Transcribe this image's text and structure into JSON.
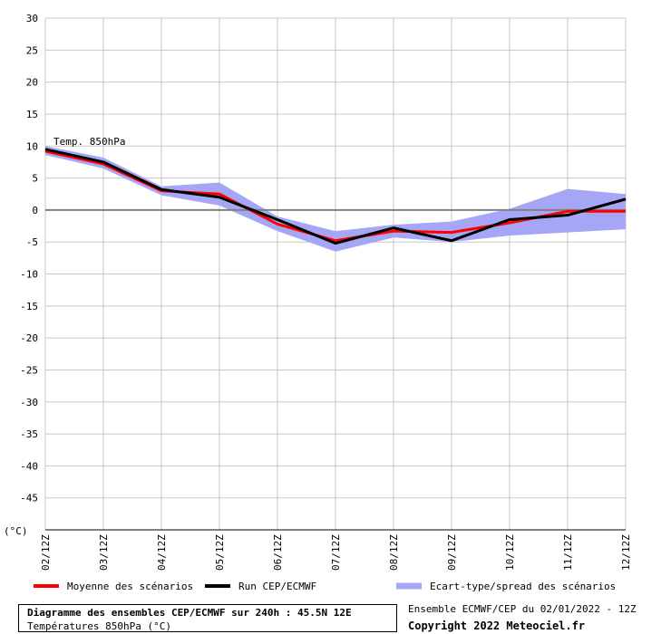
{
  "chart_data": {
    "type": "line",
    "series_label": "Temp. 850hPa",
    "unit_label": "(°C)",
    "categories": [
      "02/12Z",
      "03/12Z",
      "04/12Z",
      "05/12Z",
      "06/12Z",
      "07/12Z",
      "08/12Z",
      "09/12Z",
      "10/12Z",
      "11/12Z",
      "12/12Z"
    ],
    "yticks": [
      30,
      25,
      20,
      15,
      10,
      5,
      0,
      -5,
      -10,
      -15,
      -20,
      -25,
      -30,
      -35,
      -40,
      -45
    ],
    "ylim": [
      -50,
      30
    ],
    "grid": true,
    "series": [
      {
        "name": "Moyenne des scénarios",
        "color": "#ff0000",
        "values": [
          9.2,
          7.2,
          3.0,
          2.5,
          -2.2,
          -4.8,
          -3.3,
          -3.5,
          -2.0,
          -0.2,
          -0.2
        ]
      },
      {
        "name": "Run CEP/ECMWF",
        "color": "#000000",
        "values": [
          9.5,
          7.5,
          3.2,
          2.0,
          -1.5,
          -5.2,
          -2.8,
          -4.8,
          -1.5,
          -0.8,
          1.7
        ]
      }
    ],
    "spread": {
      "name": "Ecart-type/spread des scénarios",
      "color": "#a6a6f6",
      "upper": [
        10.0,
        8.2,
        3.7,
        4.3,
        -1.0,
        -3.3,
        -2.3,
        -1.8,
        0.2,
        3.3,
        2.5
      ],
      "lower": [
        8.6,
        6.5,
        2.3,
        0.7,
        -3.3,
        -6.5,
        -4.3,
        -5.0,
        -4.0,
        -3.5,
        -3.0
      ]
    }
  },
  "footer": {
    "title": "Diagramme des ensembles CEP/ECMWF sur 240h : 45.5N 12E",
    "subtitle": "Températures 850hPa (°C)",
    "run": "Ensemble ECMWF/CEP du 02/01/2022 - 12Z",
    "copyright": "Copyright 2022 Meteociel.fr"
  }
}
